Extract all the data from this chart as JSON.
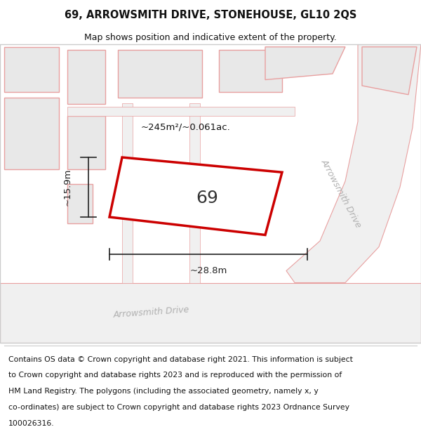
{
  "title": "69, ARROWSMITH DRIVE, STONEHOUSE, GL10 2QS",
  "subtitle": "Map shows position and indicative extent of the property.",
  "footer_lines": [
    "Contains OS data © Crown copyright and database right 2021. This information is subject",
    "to Crown copyright and database rights 2023 and is reproduced with the permission of",
    "HM Land Registry. The polygons (including the associated geometry, namely x, y",
    "co-ordinates) are subject to Crown copyright and database rights 2023 Ordnance Survey",
    "100026316."
  ],
  "area_label": "~245m²/~0.061ac.",
  "width_label": "~28.8m",
  "height_label": "~15.9m",
  "plot_number": "69",
  "map_bg": "#ffffff",
  "building_fill": "#e8e8e8",
  "road_fill": "#f0f0f0",
  "road_stroke": "#e8a0a0",
  "plot_stroke": "#cc0000",
  "plot_fill": "#ffffff",
  "dim_color": "#222222",
  "road_label_color": "#b0b0b0",
  "title_color": "#111111",
  "footer_color": "#111111",
  "title_fontsize": 10.5,
  "subtitle_fontsize": 9,
  "footer_fontsize": 7.8,
  "label_fontsize": 9.5,
  "plot_label_fontsize": 18,
  "road_label_fontsize": 9
}
